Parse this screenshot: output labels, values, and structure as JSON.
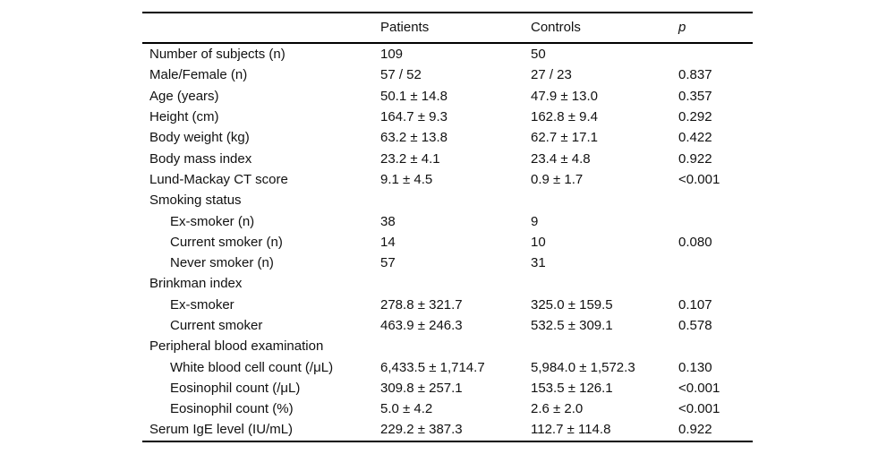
{
  "table": {
    "header": {
      "col1": "",
      "patients": "Patients",
      "controls": "Controls",
      "p": "p"
    },
    "rows": [
      {
        "label": "Number of subjects (n)",
        "indent": false,
        "patients": "109",
        "controls": "50",
        "p": ""
      },
      {
        "label": "Male/Female (n)",
        "indent": false,
        "patients": "57 / 52",
        "controls": "27 / 23",
        "p": "0.837"
      },
      {
        "label": "Age (years)",
        "indent": false,
        "patients": "50.1 ± 14.8",
        "controls": "47.9 ± 13.0",
        "p": "0.357"
      },
      {
        "label": "Height (cm)",
        "indent": false,
        "patients": "164.7 ± 9.3",
        "controls": "162.8 ± 9.4",
        "p": "0.292"
      },
      {
        "label": "Body weight (kg)",
        "indent": false,
        "patients": "63.2 ± 13.8",
        "controls": "62.7 ± 17.1",
        "p": "0.422"
      },
      {
        "label": "Body mass index",
        "indent": false,
        "patients": "23.2 ± 4.1",
        "controls": "23.4 ± 4.8",
        "p": "0.922"
      },
      {
        "label": "Lund-Mackay CT score",
        "indent": false,
        "patients": "9.1 ± 4.5",
        "controls": "0.9 ± 1.7",
        "p": "<0.001"
      },
      {
        "label": "Smoking status",
        "indent": false,
        "patients": "",
        "controls": "",
        "p": ""
      },
      {
        "label": "Ex-smoker (n)",
        "indent": true,
        "patients": "38",
        "controls": "9",
        "p": ""
      },
      {
        "label": "Current smoker (n)",
        "indent": true,
        "patients": "14",
        "controls": "10",
        "p": "0.080"
      },
      {
        "label": "Never smoker (n)",
        "indent": true,
        "patients": "57",
        "controls": "31",
        "p": ""
      },
      {
        "label": "Brinkman index",
        "indent": false,
        "patients": "",
        "controls": "",
        "p": ""
      },
      {
        "label": "Ex-smoker",
        "indent": true,
        "patients": "278.8 ± 321.7",
        "controls": "325.0 ± 159.5",
        "p": "0.107"
      },
      {
        "label": "Current smoker",
        "indent": true,
        "patients": "463.9 ± 246.3",
        "controls": "532.5 ± 309.1",
        "p": "0.578"
      },
      {
        "label": "Peripheral blood examination",
        "indent": false,
        "patients": "",
        "controls": "",
        "p": ""
      },
      {
        "label": "White blood cell count (/μL)",
        "indent": true,
        "patients": "6,433.5 ± 1,714.7",
        "controls": "5,984.0 ± 1,572.3",
        "p": "0.130"
      },
      {
        "label": "Eosinophil count (/μL)",
        "indent": true,
        "patients": "309.8 ± 257.1",
        "controls": "153.5 ± 126.1",
        "p": "<0.001"
      },
      {
        "label": "Eosinophil count (%)",
        "indent": true,
        "patients": "5.0 ± 4.2",
        "controls": "2.6 ± 2.0",
        "p": "<0.001"
      },
      {
        "label": "Serum IgE level (IU/mL)",
        "indent": false,
        "patients": "229.2 ± 387.3",
        "controls": "112.7 ± 114.8",
        "p": "0.922"
      }
    ]
  }
}
